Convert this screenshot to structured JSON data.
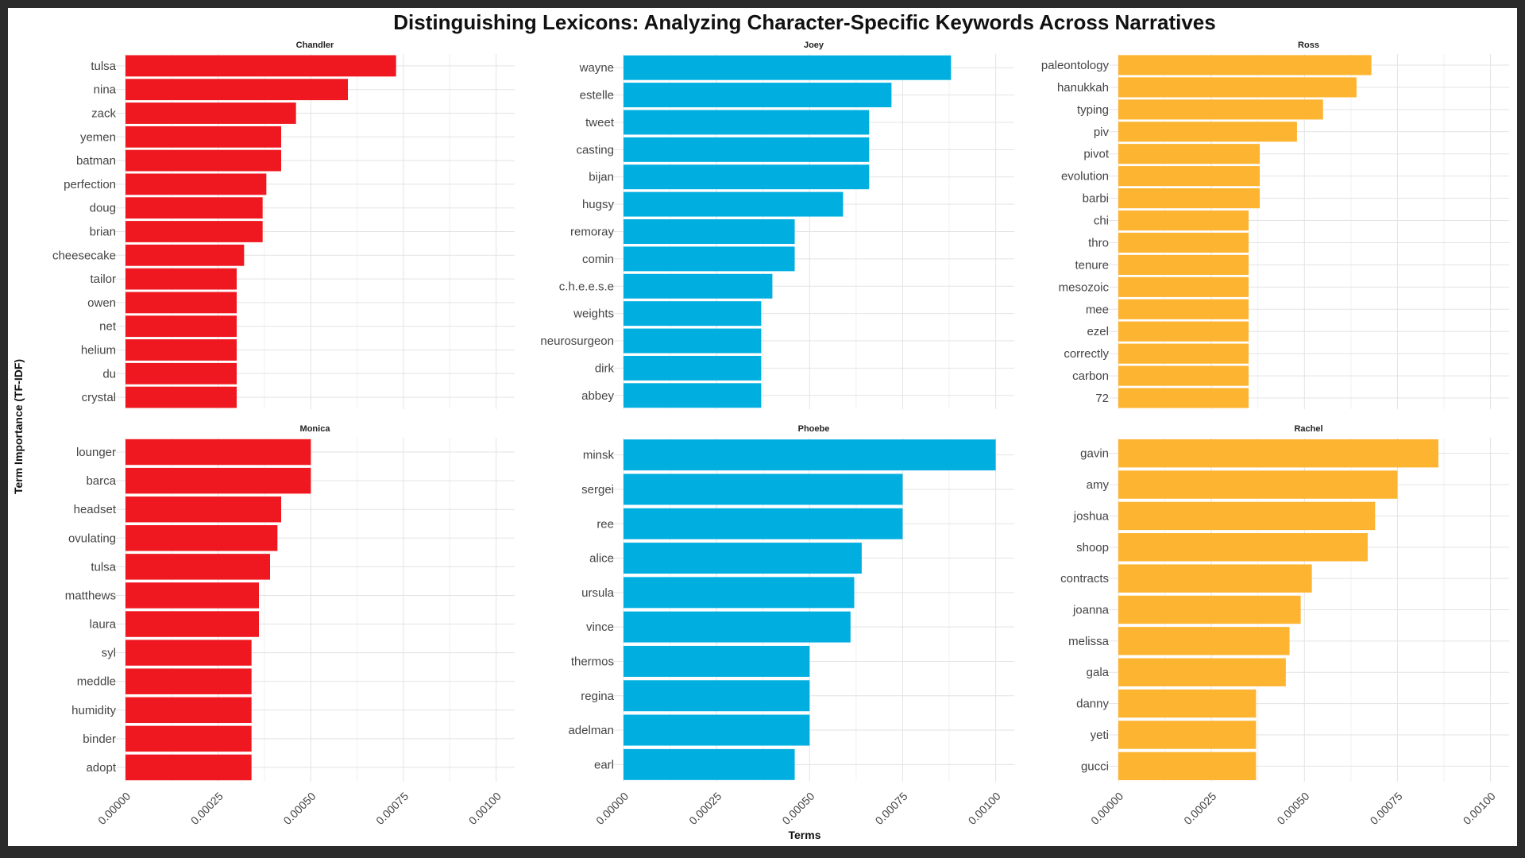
{
  "chart_data": {
    "type": "bar",
    "orientation": "horizontal",
    "title": "Distinguishing Lexicons: Analyzing Character-Specific Keywords Across Narratives",
    "xlabel": "Terms",
    "ylabel": "Term Importance (TF-IDF)",
    "xlim": [
      0,
      0.00105
    ],
    "x_ticks": [
      "0.00000",
      "0.00025",
      "0.00050",
      "0.00075",
      "0.00100"
    ],
    "grid": true,
    "colors": {
      "red": "#f01820",
      "blue": "#00aee0",
      "orange": "#fdb430"
    },
    "panels": [
      {
        "name": "Chandler",
        "color": "red",
        "categories": [
          "tulsa",
          "nina",
          "zack",
          "yemen",
          "batman",
          "perfection",
          "doug",
          "brian",
          "cheesecake",
          "tailor",
          "owen",
          "net",
          "helium",
          "du",
          "crystal"
        ],
        "values": [
          0.00073,
          0.0006,
          0.00046,
          0.00042,
          0.00042,
          0.00038,
          0.00037,
          0.00037,
          0.00032,
          0.0003,
          0.0003,
          0.0003,
          0.0003,
          0.0003,
          0.0003
        ]
      },
      {
        "name": "Joey",
        "color": "blue",
        "categories": [
          "wayne",
          "estelle",
          "tweet",
          "casting",
          "bijan",
          "hugsy",
          "remoray",
          "comin",
          "c.h.e.e.s.e",
          "weights",
          "neurosurgeon",
          "dirk",
          "abbey"
        ],
        "values": [
          0.00088,
          0.00072,
          0.00066,
          0.00066,
          0.00066,
          0.00059,
          0.00046,
          0.00046,
          0.0004,
          0.00037,
          0.00037,
          0.00037,
          0.00037
        ]
      },
      {
        "name": "Ross",
        "color": "orange",
        "categories": [
          "paleontology",
          "hanukkah",
          "typing",
          "piv",
          "pivot",
          "evolution",
          "barbi",
          "chi",
          "thro",
          "tenure",
          "mesozoic",
          "mee",
          "ezel",
          "correctly",
          "carbon",
          "72"
        ],
        "values": [
          0.00068,
          0.00064,
          0.00055,
          0.00048,
          0.00038,
          0.00038,
          0.00038,
          0.00035,
          0.00035,
          0.00035,
          0.00035,
          0.00035,
          0.00035,
          0.00035,
          0.00035,
          0.00035
        ]
      },
      {
        "name": "Monica",
        "color": "red",
        "categories": [
          "lounger",
          "barca",
          "headset",
          "ovulating",
          "tulsa",
          "matthews",
          "laura",
          "syl",
          "meddle",
          "humidity",
          "binder",
          "adopt"
        ],
        "values": [
          0.0005,
          0.0005,
          0.00042,
          0.00041,
          0.00039,
          0.00036,
          0.00036,
          0.00034,
          0.00034,
          0.00034,
          0.00034,
          0.00034
        ]
      },
      {
        "name": "Phoebe",
        "color": "blue",
        "categories": [
          "minsk",
          "sergei",
          "ree",
          "alice",
          "ursula",
          "vince",
          "thermos",
          "regina",
          "adelman",
          "earl"
        ],
        "values": [
          0.001,
          0.00075,
          0.00075,
          0.00064,
          0.00062,
          0.00061,
          0.0005,
          0.0005,
          0.0005,
          0.00046
        ]
      },
      {
        "name": "Rachel",
        "color": "orange",
        "categories": [
          "gavin",
          "amy",
          "joshua",
          "shoop",
          "contracts",
          "joanna",
          "melissa",
          "gala",
          "danny",
          "yeti",
          "gucci"
        ],
        "values": [
          0.00086,
          0.00075,
          0.00069,
          0.00067,
          0.00052,
          0.00049,
          0.00046,
          0.00045,
          0.00037,
          0.00037,
          0.00037
        ]
      }
    ]
  }
}
